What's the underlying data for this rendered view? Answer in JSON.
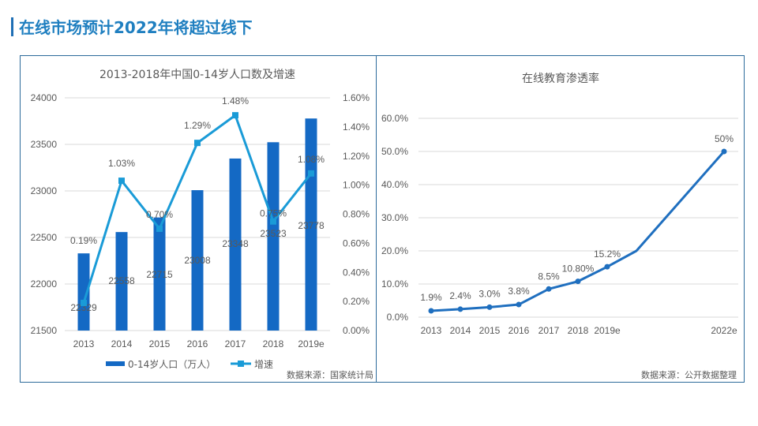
{
  "page": {
    "title": "在线市场预计2022年将超过线下"
  },
  "colors": {
    "title": "#1f7fc0",
    "bar": "#1469c4",
    "growth_line": "#1a9bd7",
    "penetration_line": "#1f6fbf",
    "frame": "#2b6a9a",
    "grid": "#d9d9d9",
    "text": "#595959"
  },
  "chart_data": [
    {
      "type": "bar",
      "title": "2013-2018年中国0-14岁人口数及增速",
      "categories": [
        "2013",
        "2014",
        "2015",
        "2016",
        "2017",
        "2018",
        "2019e"
      ],
      "series": [
        {
          "name": "0-14岁人口（万人）",
          "type": "bar",
          "axis": "left",
          "values": [
            22329,
            22558,
            22715,
            23008,
            23348,
            23523,
            23778
          ],
          "labels": [
            "22329",
            "22558",
            "22715",
            "23008",
            "23348",
            "23523",
            "23778"
          ]
        },
        {
          "name": "增速",
          "type": "line",
          "axis": "right",
          "values": [
            0.19,
            1.03,
            0.7,
            1.29,
            1.48,
            0.75,
            1.08
          ],
          "labels": [
            "0.19%",
            "1.03%",
            "0.70%",
            "1.29%",
            "1.48%",
            "0.75%",
            "1.08%"
          ]
        }
      ],
      "y_left": {
        "min": 21500,
        "max": 24000,
        "ticks": [
          "21500",
          "22000",
          "22500",
          "23000",
          "23500",
          "24000"
        ]
      },
      "y_right": {
        "min": 0,
        "max": 1.6,
        "ticks": [
          "0.00%",
          "0.20%",
          "0.40%",
          "0.60%",
          "0.80%",
          "1.00%",
          "1.20%",
          "1.40%",
          "1.60%"
        ]
      },
      "grid": true,
      "legend": "bottom",
      "source": "数据来源：国家统计局"
    },
    {
      "type": "line",
      "title": "在线教育渗透率",
      "x": [
        "2013",
        "2014",
        "2015",
        "2016",
        "2017",
        "2018",
        "2019e",
        "",
        "2022e"
      ],
      "series": [
        {
          "name": "在线教育渗透率",
          "values": [
            1.9,
            2.4,
            3.0,
            3.8,
            8.5,
            10.8,
            15.2,
            20.0,
            50.0
          ],
          "labels": [
            "1.9%",
            "2.4%",
            "3.0%",
            "3.8%",
            "8.5%",
            "10.80%",
            "15.2%",
            "",
            "50%"
          ],
          "markers": [
            true,
            true,
            true,
            true,
            true,
            true,
            true,
            false,
            true
          ]
        }
      ],
      "x_ticks": [
        "2013",
        "2014",
        "2015",
        "2016",
        "2017",
        "2018",
        "2019e",
        "2022e"
      ],
      "y": {
        "min": 0,
        "max": 60,
        "ticks": [
          "0.0%",
          "10.0%",
          "20.0%",
          "30.0%",
          "40.0%",
          "50.0%",
          "60.0%"
        ]
      },
      "grid": true,
      "legend": "none",
      "source": "数据来源：公开数据整理"
    }
  ]
}
